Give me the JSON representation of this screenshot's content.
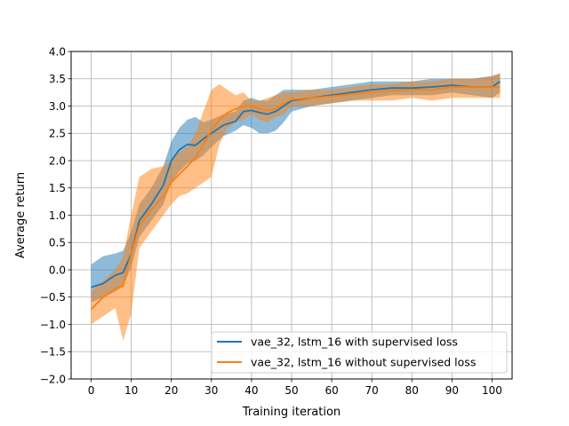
{
  "chart_data": {
    "type": "line",
    "title": "",
    "xlabel": "Training iteration",
    "ylabel": "Average return",
    "xlim": [
      -5,
      105
    ],
    "ylim": [
      -2.0,
      4.0
    ],
    "grid": true,
    "legend_position": "lower-right",
    "x_ticks": [
      0,
      10,
      20,
      30,
      40,
      50,
      60,
      70,
      80,
      90,
      100
    ],
    "x_tick_labels": [
      "0",
      "10",
      "20",
      "30",
      "40",
      "50",
      "60",
      "70",
      "80",
      "90",
      "100"
    ],
    "y_ticks": [
      -2.0,
      -1.5,
      -1.0,
      -0.5,
      0.0,
      0.5,
      1.0,
      1.5,
      2.0,
      2.5,
      3.0,
      3.5,
      4.0
    ],
    "y_tick_labels": [
      "−2.0",
      "−1.5",
      "−1.0",
      "−0.5",
      "0.0",
      "0.5",
      "1.0",
      "1.5",
      "2.0",
      "2.5",
      "3.0",
      "3.5",
      "4.0"
    ],
    "series": [
      {
        "name": "vae_32, lstm_16 with supervised loss",
        "color": "#1f77b4",
        "x": [
          0,
          3,
          6,
          8,
          10,
          12,
          15,
          18,
          20,
          22,
          24,
          26,
          28,
          30,
          33,
          36,
          38,
          40,
          42,
          44,
          46,
          48,
          50,
          55,
          60,
          65,
          70,
          75,
          80,
          85,
          90,
          95,
          100,
          102
        ],
        "mean": [
          -0.32,
          -0.25,
          -0.1,
          -0.05,
          0.3,
          0.9,
          1.2,
          1.55,
          2.0,
          2.2,
          2.3,
          2.28,
          2.4,
          2.5,
          2.65,
          2.72,
          2.9,
          2.92,
          2.88,
          2.85,
          2.9,
          3.0,
          3.1,
          3.15,
          3.2,
          3.25,
          3.3,
          3.33,
          3.33,
          3.35,
          3.38,
          3.35,
          3.35,
          3.45
        ],
        "lower": [
          -0.6,
          -0.5,
          -0.4,
          -0.3,
          0.05,
          0.6,
          0.9,
          1.2,
          1.6,
          1.8,
          1.95,
          2.0,
          2.1,
          2.25,
          2.45,
          2.55,
          2.65,
          2.6,
          2.5,
          2.5,
          2.55,
          2.7,
          2.9,
          3.0,
          3.05,
          3.1,
          3.15,
          3.2,
          3.2,
          3.2,
          3.25,
          3.2,
          3.15,
          3.25
        ],
        "upper": [
          0.1,
          0.25,
          0.3,
          0.35,
          0.7,
          1.2,
          1.5,
          1.9,
          2.35,
          2.6,
          2.75,
          2.8,
          2.7,
          2.75,
          2.85,
          2.9,
          3.1,
          3.15,
          3.1,
          3.1,
          3.2,
          3.3,
          3.3,
          3.3,
          3.35,
          3.4,
          3.45,
          3.45,
          3.45,
          3.5,
          3.5,
          3.5,
          3.55,
          3.6
        ]
      },
      {
        "name": "vae_32, lstm_16 without supervised loss",
        "color": "#ff7f0e",
        "x": [
          0,
          3,
          6,
          8,
          10,
          12,
          15,
          18,
          20,
          22,
          24,
          26,
          28,
          30,
          32,
          34,
          36,
          38,
          40,
          42,
          44,
          46,
          48,
          50,
          55,
          60,
          65,
          70,
          75,
          80,
          85,
          90,
          95,
          100,
          102
        ],
        "mean": [
          -0.72,
          -0.5,
          -0.35,
          -0.3,
          0.3,
          0.8,
          1.1,
          1.35,
          1.6,
          1.75,
          1.9,
          2.05,
          2.3,
          2.55,
          2.75,
          2.88,
          2.95,
          3.0,
          3.0,
          2.95,
          2.92,
          2.95,
          3.05,
          3.12,
          3.15,
          3.18,
          3.22,
          3.25,
          3.28,
          3.3,
          3.3,
          3.35,
          3.35,
          3.35,
          3.35
        ],
        "lower": [
          -1.0,
          -0.85,
          -0.7,
          -1.3,
          -0.8,
          0.4,
          0.7,
          1.0,
          1.2,
          1.35,
          1.4,
          1.5,
          1.6,
          1.7,
          2.3,
          2.6,
          2.7,
          2.75,
          2.85,
          2.75,
          2.7,
          2.8,
          2.85,
          3.0,
          3.0,
          3.05,
          3.1,
          3.1,
          3.1,
          3.15,
          3.1,
          3.15,
          3.15,
          3.15,
          3.15
        ],
        "upper": [
          -0.4,
          -0.2,
          0.0,
          0.25,
          1.0,
          1.7,
          1.85,
          1.9,
          2.0,
          2.15,
          2.25,
          2.5,
          2.9,
          3.3,
          3.4,
          3.3,
          3.2,
          3.25,
          3.1,
          3.1,
          3.15,
          3.2,
          3.25,
          3.25,
          3.3,
          3.3,
          3.35,
          3.4,
          3.4,
          3.45,
          3.45,
          3.5,
          3.5,
          3.55,
          3.6
        ]
      }
    ]
  }
}
